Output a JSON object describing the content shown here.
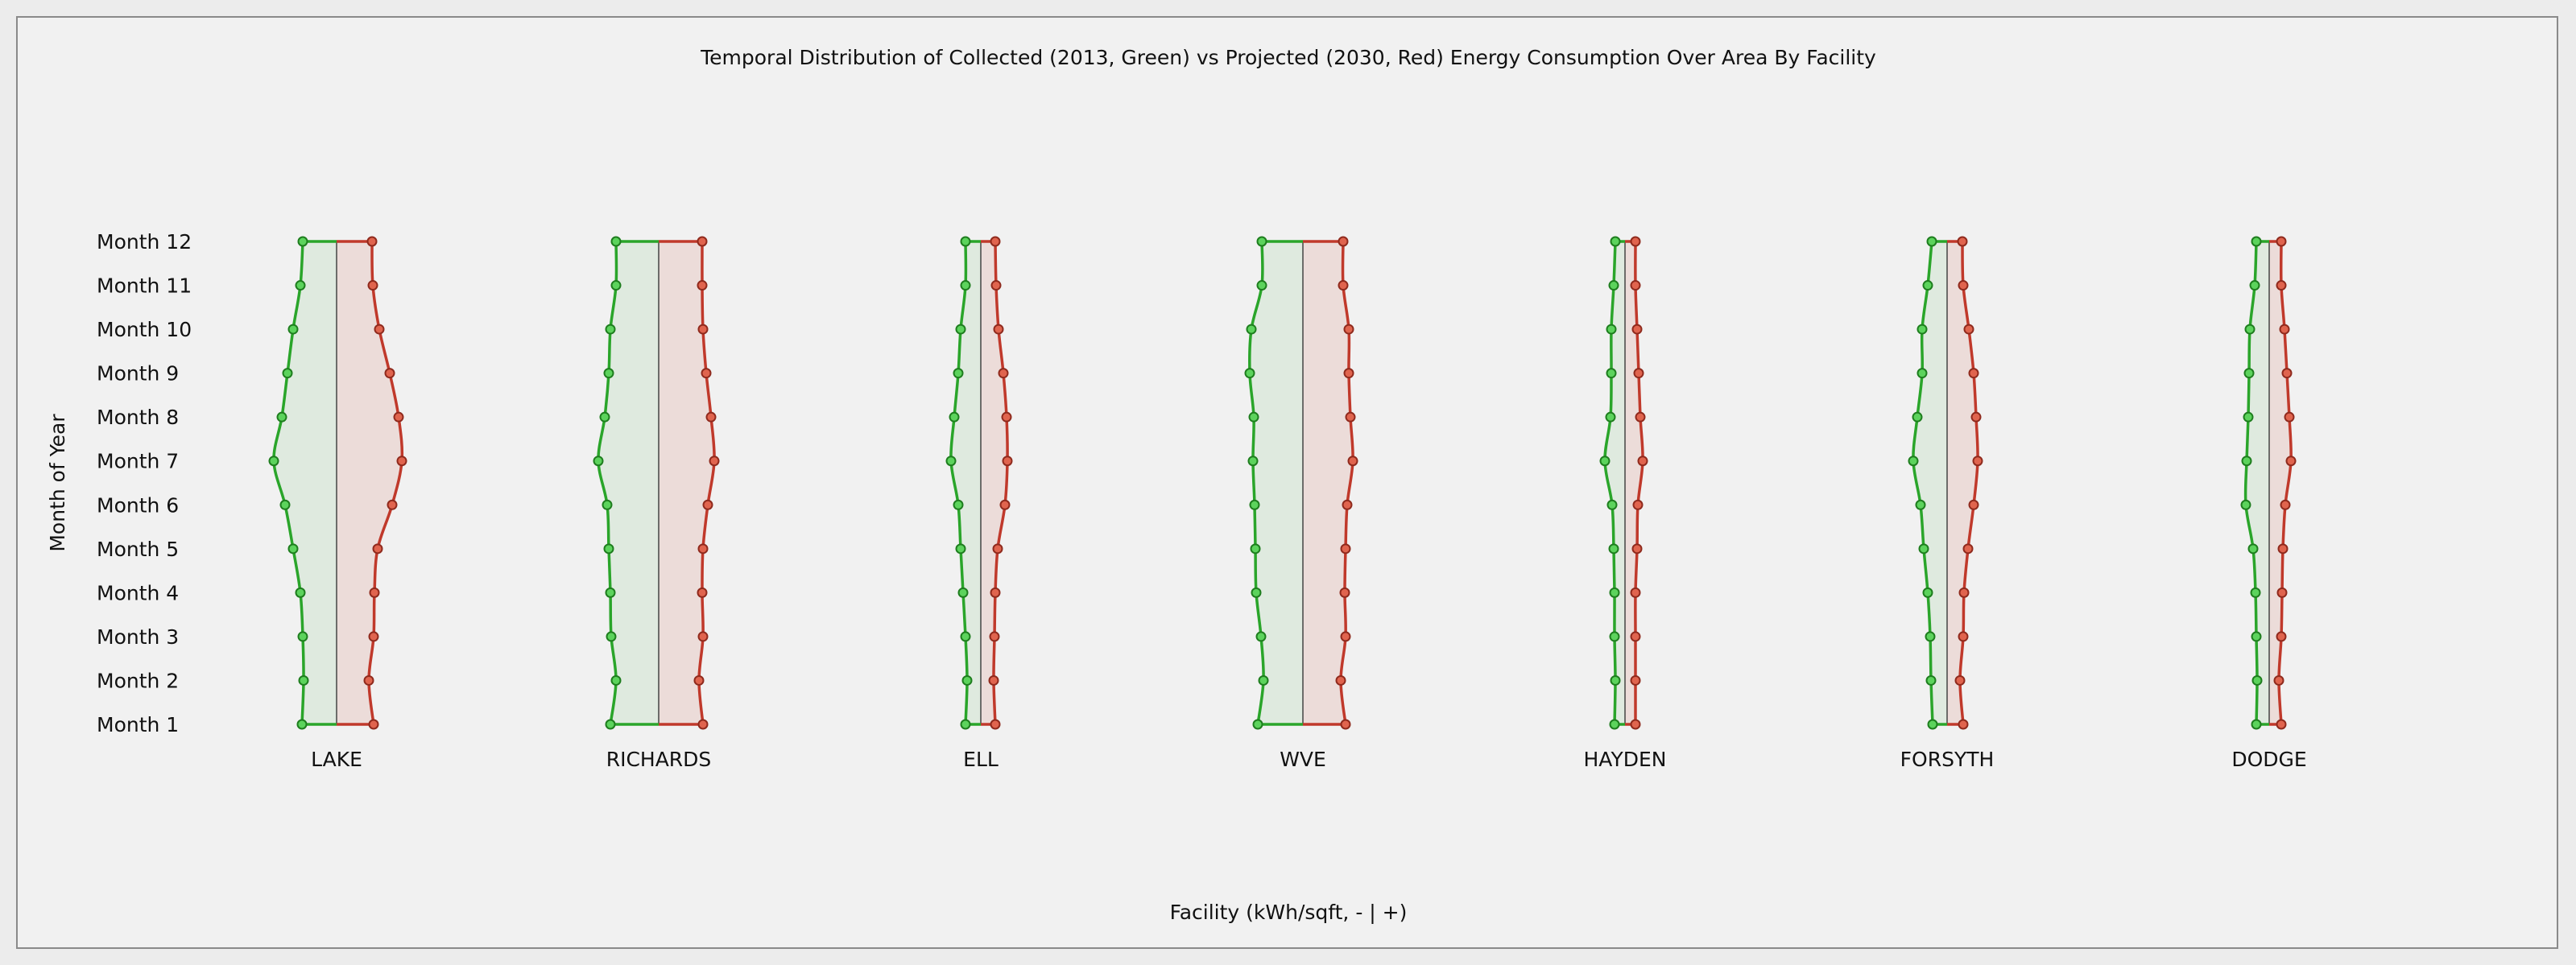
{
  "chart_data": {
    "type": "violin",
    "title": "Temporal Distribution of Collected (2013, Green) vs Projected (2030, Red) Energy Consumption Over Area By Facility",
    "xlabel": "Facility (kWh/sqft, - | +)",
    "ylabel": "Month of Year",
    "months": [
      "Month 1",
      "Month 2",
      "Month 3",
      "Month 4",
      "Month 5",
      "Month 6",
      "Month 7",
      "Month 8",
      "Month 9",
      "Month 10",
      "Month 11",
      "Month 12"
    ],
    "series_colors": {
      "collected_2013": "#2aa52a",
      "projected_2030": "#c0392b"
    },
    "fill_colors": {
      "collected_2013": "#dfeadf",
      "projected_2030": "#ecdcd9"
    },
    "legend": "none",
    "grid": false,
    "facilities": [
      {
        "name": "LAKE",
        "collected_2013": [
          0.43,
          0.41,
          0.42,
          0.45,
          0.54,
          0.64,
          0.78,
          0.68,
          0.61,
          0.54,
          0.45,
          0.42
        ],
        "projected_2030": [
          0.46,
          0.4,
          0.46,
          0.47,
          0.51,
          0.69,
          0.81,
          0.77,
          0.66,
          0.53,
          0.45,
          0.44
        ]
      },
      {
        "name": "RICHARDS",
        "collected_2013": [
          0.6,
          0.53,
          0.59,
          0.6,
          0.62,
          0.64,
          0.75,
          0.67,
          0.62,
          0.6,
          0.53,
          0.53
        ],
        "projected_2030": [
          0.55,
          0.5,
          0.55,
          0.54,
          0.55,
          0.61,
          0.69,
          0.65,
          0.59,
          0.55,
          0.54,
          0.54
        ]
      },
      {
        "name": "ELL",
        "collected_2013": [
          0.19,
          0.17,
          0.19,
          0.22,
          0.25,
          0.28,
          0.37,
          0.33,
          0.28,
          0.25,
          0.19,
          0.19
        ],
        "projected_2030": [
          0.18,
          0.16,
          0.17,
          0.18,
          0.21,
          0.3,
          0.33,
          0.32,
          0.28,
          0.22,
          0.19,
          0.18
        ]
      },
      {
        "name": "WVE",
        "collected_2013": [
          0.56,
          0.49,
          0.52,
          0.58,
          0.59,
          0.6,
          0.62,
          0.61,
          0.66,
          0.64,
          0.51,
          0.51
        ],
        "projected_2030": [
          0.53,
          0.47,
          0.53,
          0.52,
          0.53,
          0.55,
          0.62,
          0.59,
          0.57,
          0.57,
          0.5,
          0.5
        ]
      },
      {
        "name": "HAYDEN",
        "collected_2013": [
          0.13,
          0.12,
          0.13,
          0.13,
          0.14,
          0.16,
          0.25,
          0.18,
          0.17,
          0.17,
          0.14,
          0.12
        ],
        "projected_2030": [
          0.13,
          0.13,
          0.13,
          0.13,
          0.15,
          0.16,
          0.22,
          0.19,
          0.17,
          0.15,
          0.13,
          0.13
        ]
      },
      {
        "name": "FORSYTH",
        "collected_2013": [
          0.18,
          0.2,
          0.21,
          0.24,
          0.29,
          0.33,
          0.42,
          0.37,
          0.31,
          0.31,
          0.24,
          0.19
        ],
        "projected_2030": [
          0.2,
          0.16,
          0.2,
          0.21,
          0.26,
          0.33,
          0.38,
          0.36,
          0.33,
          0.27,
          0.2,
          0.19
        ]
      },
      {
        "name": "DODGE",
        "collected_2013": [
          0.16,
          0.15,
          0.16,
          0.17,
          0.2,
          0.29,
          0.28,
          0.26,
          0.25,
          0.24,
          0.18,
          0.16
        ],
        "projected_2030": [
          0.15,
          0.12,
          0.15,
          0.16,
          0.17,
          0.2,
          0.27,
          0.25,
          0.22,
          0.19,
          0.15,
          0.15
        ]
      }
    ]
  }
}
